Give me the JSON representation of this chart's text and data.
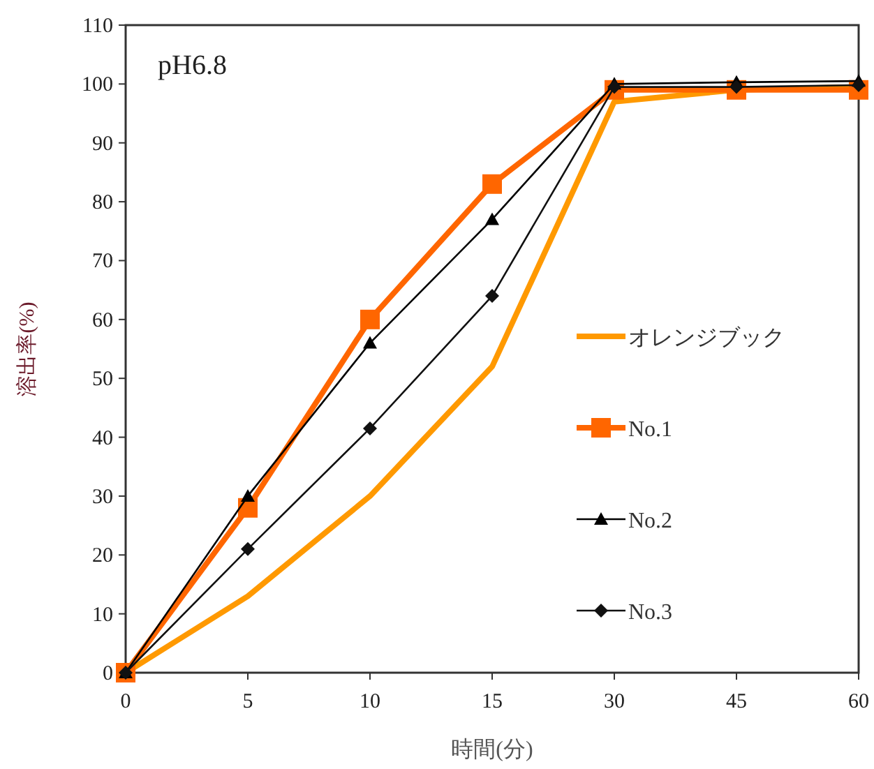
{
  "chart_data": {
    "type": "line",
    "xlabel": "時間(分)",
    "ylabel": "溶出率(%)",
    "annotations": [
      "pH6.8"
    ],
    "categories": [
      "0",
      "5",
      "10",
      "15",
      "30",
      "45",
      "60"
    ],
    "series": [
      {
        "name": "オレンジブック",
        "color": "#ff9900",
        "marker": "none",
        "values": [
          0,
          13,
          30,
          52,
          97,
          99,
          99.5
        ]
      },
      {
        "name": "No.1",
        "color": "#ff6600",
        "marker": "square",
        "values": [
          0,
          28,
          60,
          83,
          99,
          99,
          99
        ]
      },
      {
        "name": "No.2",
        "color": "#000000",
        "marker": "triangle",
        "values": [
          0,
          30,
          56,
          77,
          100,
          100.3,
          100.5
        ]
      },
      {
        "name": "No.3",
        "color": "#111111",
        "marker": "diamond",
        "values": [
          0,
          21,
          41.5,
          64,
          99.5,
          99.5,
          99.8
        ]
      }
    ],
    "ylim": [
      0,
      110
    ],
    "yticks": [
      0,
      10,
      20,
      30,
      40,
      50,
      60,
      70,
      80,
      90,
      100,
      110
    ],
    "grid": false,
    "legend": "right",
    "line_style": "solid"
  }
}
